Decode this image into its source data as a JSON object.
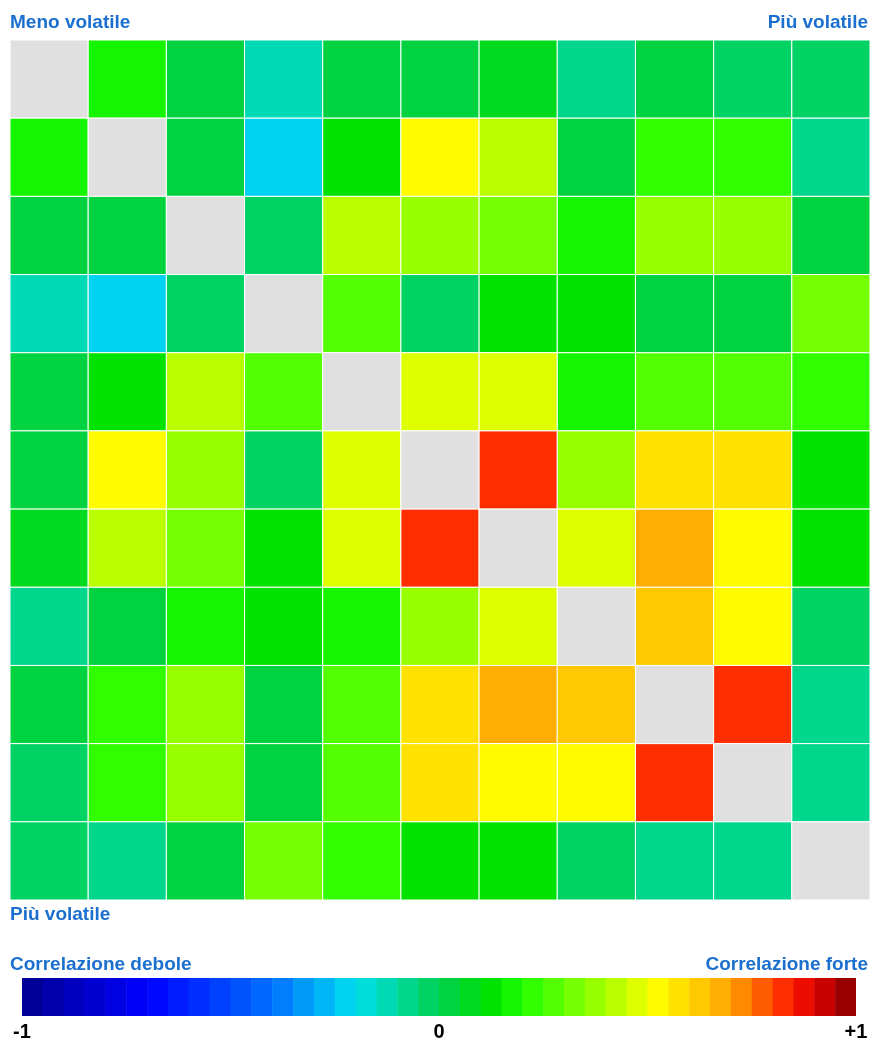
{
  "chart_data": {
    "type": "heatmap",
    "categories": [
      null,
      null,
      null,
      null,
      null,
      null,
      null,
      null,
      null,
      null,
      null
    ],
    "y_categories": [
      null,
      null,
      null,
      null,
      null,
      null,
      null,
      null,
      null,
      null,
      null
    ],
    "cells": [
      [
        null,
        0.17,
        0.02,
        -0.13,
        0.02,
        0.02,
        0.05,
        -0.08,
        0.02,
        -0.03,
        -0.03
      ],
      [
        0.17,
        null,
        0.04,
        -0.22,
        0.1,
        0.52,
        0.42,
        0.04,
        0.22,
        0.22,
        -0.08
      ],
      [
        0.02,
        0.04,
        null,
        -0.05,
        0.42,
        0.37,
        0.32,
        0.17,
        0.37,
        0.37,
        0.04
      ],
      [
        -0.13,
        -0.22,
        -0.05,
        null,
        0.27,
        -0.05,
        0.1,
        0.1,
        0.02,
        0.02,
        0.32
      ],
      [
        0.02,
        0.1,
        0.42,
        0.27,
        null,
        0.47,
        0.47,
        0.17,
        0.27,
        0.27,
        0.22
      ],
      [
        0.02,
        0.52,
        0.37,
        -0.05,
        0.47,
        null,
        0.82,
        0.37,
        0.57,
        0.57,
        0.12
      ],
      [
        0.05,
        0.42,
        0.32,
        0.1,
        0.47,
        0.82,
        null,
        0.47,
        0.67,
        0.52,
        0.1
      ],
      [
        -0.08,
        0.04,
        0.17,
        0.1,
        0.17,
        0.37,
        0.47,
        null,
        0.62,
        0.52,
        -0.03
      ],
      [
        0.02,
        0.22,
        0.37,
        0.02,
        0.27,
        0.57,
        0.67,
        0.62,
        null,
        0.82,
        -0.08
      ],
      [
        -0.03,
        0.22,
        0.37,
        0.02,
        0.27,
        0.57,
        0.52,
        0.52,
        0.82,
        null,
        -0.08
      ],
      [
        -0.03,
        -0.08,
        0.04,
        0.32,
        0.22,
        0.12,
        0.1,
        -0.03,
        -0.08,
        -0.08,
        null
      ]
    ],
    "clim": [
      -1,
      1
    ],
    "cticks": [
      {
        "value": -1,
        "label": "-1"
      },
      0,
      {
        "value": 1,
        "label": "+1"
      }
    ],
    "annotations": [
      "Meno volatile",
      "Più volatile",
      "Più volatile",
      "Correlazione debole",
      "Correlazione forte"
    ]
  }
}
